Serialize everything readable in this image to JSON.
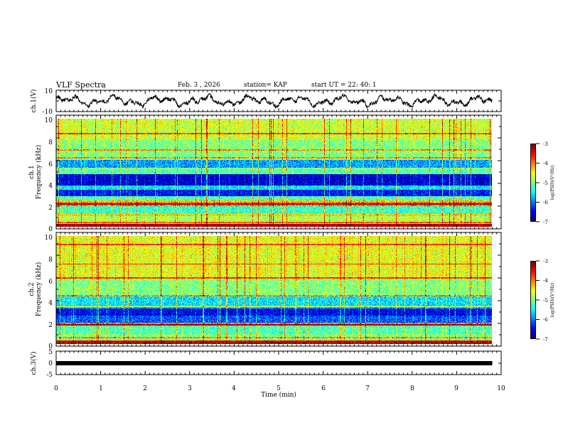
{
  "header": {
    "title": "VLF Spectra",
    "date": "Feb. 3 , 2026",
    "station": "station= KAP",
    "start": "start UT = 22: 40: 1"
  },
  "colorbar": {
    "label": "log(PSD)(V²/Hz)",
    "ticks": [
      "-3",
      "-4",
      "-5",
      "-6",
      "-7"
    ],
    "range": [
      -7,
      -3
    ]
  },
  "chart_data": [
    {
      "type": "line",
      "name": "ch1-voltage",
      "ylabel": "ch.1(V)",
      "ylim": [
        -10,
        10
      ],
      "yticks": [
        "10",
        "-10"
      ],
      "x_range_min": [
        0,
        9.8
      ],
      "note": "broadband VLF waveform, visible oscillation roughly between -7 and +7 V"
    },
    {
      "type": "heatmap",
      "name": "ch1-spectrogram",
      "ylabel": "ch.1\nFrequency (kHz)",
      "ylim": [
        0,
        10
      ],
      "yticks": [
        "0",
        "2",
        "4",
        "6",
        "8",
        "10"
      ],
      "xlim": [
        0,
        10
      ],
      "x_data_end": 9.8,
      "z_range": [
        -7,
        -3
      ],
      "background_level": -5.0,
      "bands": [
        {
          "from": 0.0,
          "to": 0.25,
          "level": -3.3
        },
        {
          "from": 0.25,
          "to": 1.0,
          "level": -4.8
        },
        {
          "from": 1.0,
          "to": 1.9,
          "level": -5.3
        },
        {
          "from": 1.9,
          "to": 2.3,
          "level": -4.0
        },
        {
          "from": 2.3,
          "to": 2.8,
          "level": -5.2
        },
        {
          "from": 2.8,
          "to": 3.4,
          "level": -6.5
        },
        {
          "from": 3.4,
          "to": 3.8,
          "level": -5.6
        },
        {
          "from": 3.8,
          "to": 4.9,
          "level": -6.7
        },
        {
          "from": 4.9,
          "to": 5.3,
          "level": -5.2
        },
        {
          "from": 5.3,
          "to": 6.2,
          "level": -5.9
        },
        {
          "from": 6.2,
          "to": 8.0,
          "level": -5.0
        },
        {
          "from": 8.0,
          "to": 10.0,
          "level": -4.7
        }
      ],
      "lines_khz": [
        0.4,
        1.1,
        2.1,
        2.4,
        5.4,
        6.4,
        7.1,
        8.6
      ]
    },
    {
      "type": "heatmap",
      "name": "ch2-spectrogram",
      "ylabel": "ch.2\nFrequency (kHz)",
      "ylim": [
        0,
        10
      ],
      "yticks": [
        "0",
        "2",
        "4",
        "6",
        "8",
        "10"
      ],
      "xlim": [
        0,
        10
      ],
      "x_data_end": 9.8,
      "z_range": [
        -7,
        -3
      ],
      "background_level": -5.0,
      "bands": [
        {
          "from": 0.0,
          "to": 0.3,
          "level": -3.4
        },
        {
          "from": 0.3,
          "to": 0.9,
          "level": -5.0
        },
        {
          "from": 0.9,
          "to": 1.7,
          "level": -5.2
        },
        {
          "from": 1.7,
          "to": 2.0,
          "level": -4.0
        },
        {
          "from": 2.0,
          "to": 2.6,
          "level": -6.2
        },
        {
          "from": 2.6,
          "to": 3.3,
          "level": -6.6
        },
        {
          "from": 3.3,
          "to": 3.6,
          "level": -5.8
        },
        {
          "from": 3.6,
          "to": 4.4,
          "level": -5.6
        },
        {
          "from": 4.4,
          "to": 6.0,
          "level": -5.0
        },
        {
          "from": 6.0,
          "to": 10.0,
          "level": -4.6
        }
      ],
      "lines_khz": [
        0.6,
        1.8,
        3.5,
        4.5,
        6.1,
        7.4,
        9.2
      ]
    },
    {
      "type": "line",
      "name": "ch3-voltage",
      "ylabel": "ch.3(V)",
      "ylim": [
        -5,
        5
      ],
      "yticks": [
        "5",
        "0",
        "-5"
      ],
      "value": 0,
      "xlabel": "Time (min)",
      "xlim": [
        0,
        10
      ],
      "xticks": [
        "0",
        "1",
        "2",
        "3",
        "4",
        "5",
        "6",
        "7",
        "8",
        "9",
        "10"
      ]
    }
  ]
}
